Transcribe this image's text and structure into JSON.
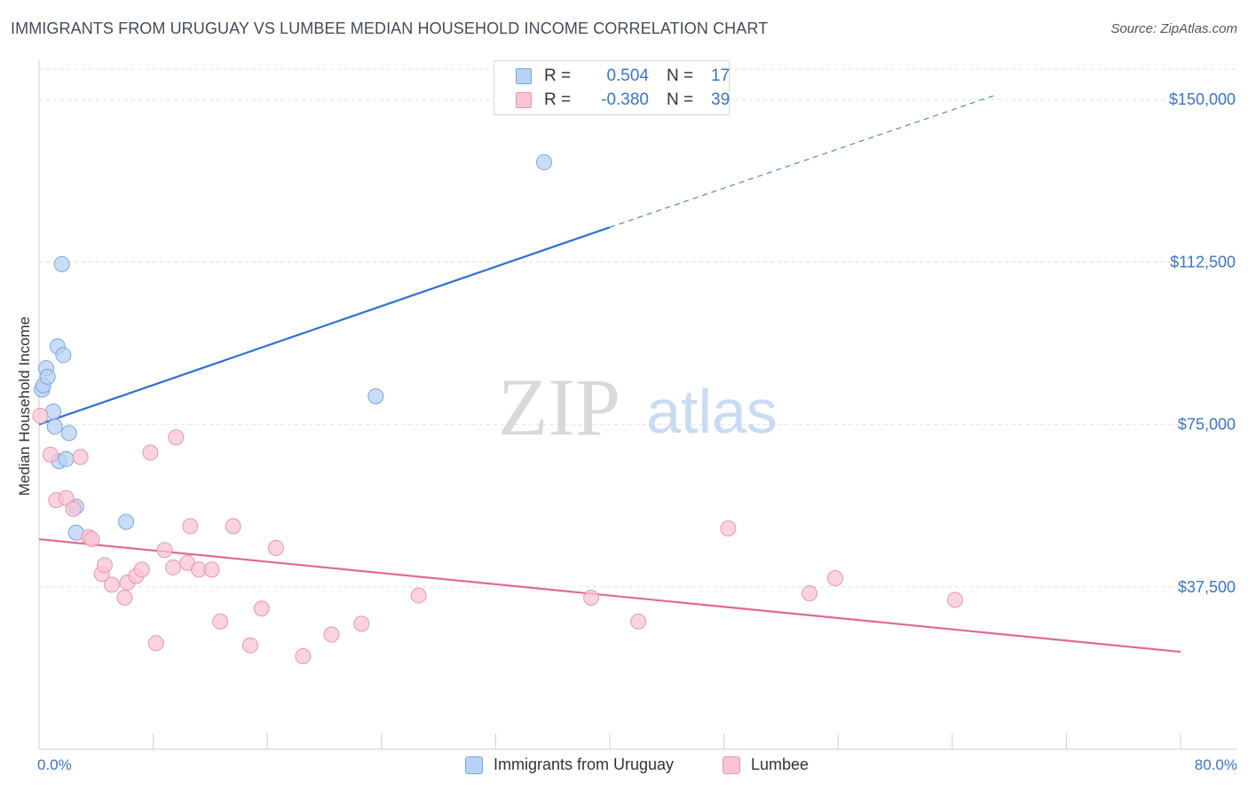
{
  "title": "IMMIGRANTS FROM URUGUAY VS LUMBEE MEDIAN HOUSEHOLD INCOME CORRELATION CHART",
  "source": "Source: ZipAtlas.com",
  "watermark": {
    "zip": "ZIP",
    "atlas": "atlas"
  },
  "legend": {
    "series1": {
      "r_label": "R =",
      "r_value": "0.504",
      "n_label": "N =",
      "n_value": "17"
    },
    "series2": {
      "r_label": "R =",
      "r_value": "-0.380",
      "n_label": "N =",
      "n_value": "39"
    }
  },
  "colors": {
    "blue_fill": "#b8d2f4",
    "blue_stroke": "#7aa6e0",
    "blue_line": "#2f72cf",
    "pink_fill": "#f8c4d4",
    "pink_stroke": "#e896b0",
    "pink_line": "#e0689a",
    "tick_text": "#3a74cc",
    "grid": "#e0e0e0"
  },
  "chart_data": {
    "type": "scatter",
    "title": "IMMIGRANTS FROM URUGUAY VS LUMBEE MEDIAN HOUSEHOLD INCOME CORRELATION CHART",
    "xlabel": "",
    "ylabel": "Median Household Income",
    "xlim": [
      0,
      80
    ],
    "ylim": [
      0,
      157000
    ],
    "x_tick_labels": [
      "0.0%",
      "80.0%"
    ],
    "y_ticks": [
      37500,
      75000,
      112500,
      150000
    ],
    "y_tick_labels": [
      "$37,500",
      "$75,000",
      "$112,500",
      "$150,000"
    ],
    "series": [
      {
        "name": "Immigrants from Uruguay",
        "color": "blue",
        "points": [
          [
            0.2,
            83000
          ],
          [
            0.3,
            84000
          ],
          [
            0.5,
            88000
          ],
          [
            0.6,
            86000
          ],
          [
            1.0,
            78000
          ],
          [
            1.1,
            74500
          ],
          [
            1.3,
            93000
          ],
          [
            1.4,
            66500
          ],
          [
            1.6,
            112000
          ],
          [
            1.7,
            91000
          ],
          [
            1.9,
            67000
          ],
          [
            2.1,
            73000
          ],
          [
            2.6,
            56000
          ],
          [
            2.6,
            50000
          ],
          [
            6.1,
            52500
          ],
          [
            23.6,
            81500
          ],
          [
            35.4,
            135500
          ]
        ],
        "trend": {
          "x0": 0,
          "y0": 75000,
          "x1": 40,
          "y1": 120500,
          "dashed_to_x": 67,
          "dashed_to_y": 151000
        }
      },
      {
        "name": "Lumbee",
        "color": "pink",
        "points": [
          [
            0.1,
            77000
          ],
          [
            0.8,
            68000
          ],
          [
            1.2,
            57500
          ],
          [
            1.9,
            58000
          ],
          [
            2.4,
            55500
          ],
          [
            2.9,
            67500
          ],
          [
            3.5,
            49000
          ],
          [
            3.7,
            48500
          ],
          [
            4.4,
            40500
          ],
          [
            4.6,
            42500
          ],
          [
            5.1,
            38000
          ],
          [
            6.0,
            35000
          ],
          [
            6.2,
            38500
          ],
          [
            6.8,
            40000
          ],
          [
            7.2,
            41500
          ],
          [
            7.8,
            68500
          ],
          [
            8.2,
            24500
          ],
          [
            8.8,
            46000
          ],
          [
            9.4,
            42000
          ],
          [
            9.6,
            72000
          ],
          [
            10.4,
            43000
          ],
          [
            10.6,
            51500
          ],
          [
            11.2,
            41500
          ],
          [
            12.1,
            41500
          ],
          [
            12.7,
            29500
          ],
          [
            13.6,
            51500
          ],
          [
            14.8,
            24000
          ],
          [
            15.6,
            32500
          ],
          [
            16.6,
            46500
          ],
          [
            18.5,
            21500
          ],
          [
            20.5,
            26500
          ],
          [
            22.6,
            29000
          ],
          [
            26.6,
            35500
          ],
          [
            38.7,
            35000
          ],
          [
            42.0,
            29500
          ],
          [
            48.3,
            51000
          ],
          [
            54.0,
            36000
          ],
          [
            55.8,
            39500
          ],
          [
            64.2,
            34500
          ]
        ],
        "trend": {
          "x0": 0,
          "y0": 48500,
          "x1": 80,
          "y1": 22500
        }
      }
    ]
  },
  "bottom_legend": {
    "item1": "Immigrants from Uruguay",
    "item2": "Lumbee"
  }
}
